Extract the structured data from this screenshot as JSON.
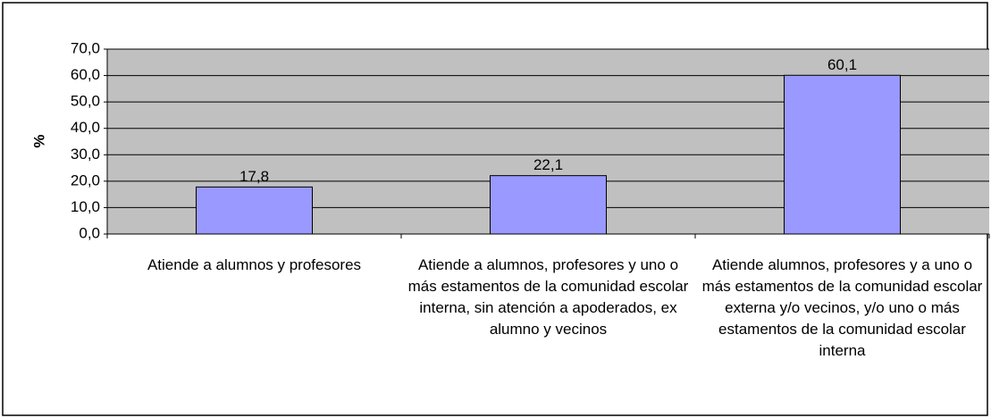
{
  "chart_data": {
    "type": "bar",
    "y_label": "%",
    "categories": [
      "Atiende a alumnos y profesores",
      "Atiende a alumnos, profesores y uno o más estamentos de la comunidad escolar interna, sin atención a apoderados, ex alumno y vecinos",
      "Atiende alumnos, profesores y a uno o más estamentos de la comunidad escolar externa y/o vecinos, y/o uno o más estamentos de la comunidad escolar interna"
    ],
    "values": [
      17.8,
      22.1,
      60.1
    ],
    "value_labels": [
      "17,8",
      "22,1",
      "60,1"
    ],
    "color": "#9999ff",
    "ylim": [
      0,
      70
    ],
    "yticks": [
      {
        "value": 0,
        "label": "0,0"
      },
      {
        "value": 10,
        "label": "10,0"
      },
      {
        "value": 20,
        "label": "20,0"
      },
      {
        "value": 30,
        "label": "30,0"
      },
      {
        "value": 40,
        "label": "40,0"
      },
      {
        "value": 50,
        "label": "50,0"
      },
      {
        "value": 60,
        "label": "60,0"
      },
      {
        "value": 70,
        "label": "70,0"
      }
    ],
    "grid": true
  }
}
